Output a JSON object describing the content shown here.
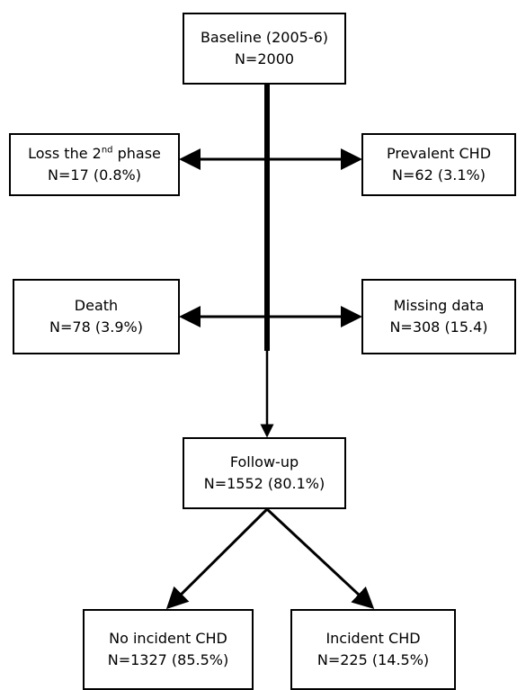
{
  "flowchart": {
    "baseline": {
      "line1": "Baseline (2005-6)",
      "line2": "N=2000"
    },
    "loss": {
      "line1_pre": "Loss the 2",
      "line1_sup": "nd",
      "line1_post": " phase",
      "line2": "N=17 (0.8%)"
    },
    "prevalent": {
      "line1": "Prevalent CHD",
      "line2": "N=62 (3.1%)"
    },
    "death": {
      "line1": "Death",
      "line2": "N=78 (3.9%)"
    },
    "missing": {
      "line1": "Missing data",
      "line2": "N=308 (15.4)"
    },
    "followup": {
      "line1": "Follow-up",
      "line2": "N=1552 (80.1%)"
    },
    "no_incident": {
      "line1": "No incident CHD",
      "line2": "N=1327 (85.5%)"
    },
    "incident": {
      "line1": "Incident CHD",
      "line2": "N=225 (14.5%)"
    }
  }
}
